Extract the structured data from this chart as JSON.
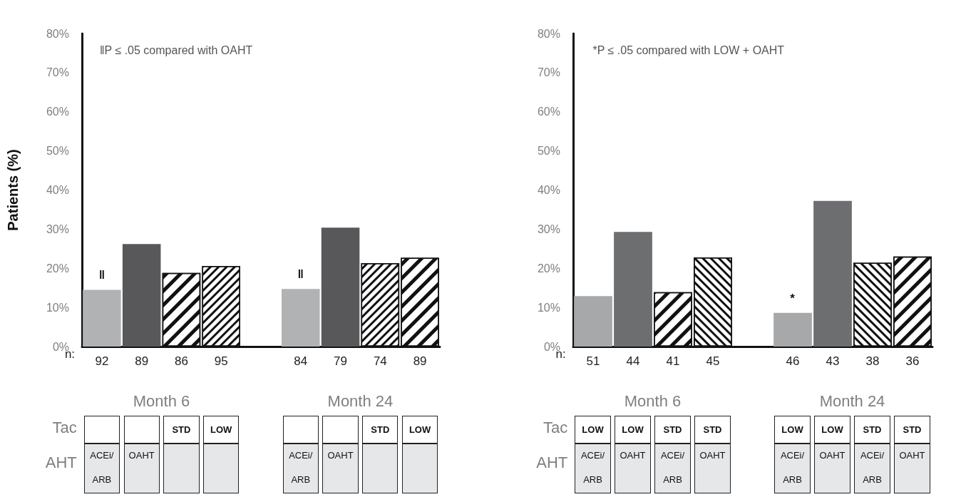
{
  "chart_data": [
    {
      "type": "bar",
      "ylabel": "Patients (%)",
      "categories": [
        "92",
        "89",
        "86",
        "95",
        null,
        "84",
        "79",
        "74",
        "89"
      ],
      "values": [
        14.5,
        26.2,
        18.8,
        20.6,
        null,
        14.7,
        30.4,
        21.3,
        22.7
      ],
      "colors": [
        "#b1b2b4",
        "#58585a",
        "#ffffff",
        "#ffffff",
        "#ffffff",
        "#b1b2b4",
        "#58585a",
        "#ffffff",
        "#ffffff"
      ],
      "ylim": [
        0,
        80
      ],
      "yticks": [
        {
          "value": 0,
          "label": "0%"
        },
        {
          "value": 10,
          "label": "10%"
        },
        {
          "value": 20,
          "label": "20%"
        },
        {
          "value": 30,
          "label": "30%"
        },
        {
          "value": 40,
          "label": "40%"
        },
        {
          "value": 50,
          "label": "50%"
        },
        {
          "value": 60,
          "label": "60%"
        },
        {
          "value": 70,
          "label": "70%"
        },
        {
          "value": 80,
          "label": "80%"
        }
      ],
      "annotations": [
        "ǁP ≤ .05 compared with OAHT",
        "n:",
        "Month 6",
        "Month 24",
        "Tac",
        "AHT",
        null,
        null,
        "STD",
        "LOW",
        null,
        null,
        "STD",
        "LOW",
        "ACEi/ARB",
        "OAHT",
        null,
        null,
        "ACEi/ARB",
        "OAHT",
        null,
        null,
        {
          "text": "ǁ",
          "x": "92",
          "y": 14.5
        },
        {
          "text": "ǁ",
          "x": "84",
          "y": 14.7
        }
      ]
    },
    {
      "type": "bar",
      "categories": [
        "51",
        "44",
        "41",
        "45",
        null,
        "46",
        "43",
        "38",
        "36"
      ],
      "values": [
        12.9,
        29.3,
        13.9,
        22.8,
        null,
        8.6,
        37.2,
        21.4,
        23.0
      ],
      "colors": [
        "#a7a8aa",
        "#6d6e70",
        "#ffffff",
        "#ffffff",
        "#ffffff",
        "#a7a8aa",
        "#6d6e70",
        "#ffffff",
        "#ffffff"
      ],
      "ylim": [
        0,
        80
      ],
      "yticks": [
        {
          "value": 0,
          "label": "0%"
        },
        {
          "value": 10,
          "label": "10%"
        },
        {
          "value": 20,
          "label": "20%"
        },
        {
          "value": 30,
          "label": "30%"
        },
        {
          "value": 40,
          "label": "40%"
        },
        {
          "value": 50,
          "label": "50%"
        },
        {
          "value": 60,
          "label": "60%"
        },
        {
          "value": 70,
          "label": "70%"
        },
        {
          "value": 80,
          "label": "80%"
        }
      ],
      "annotations": [
        "*P ≤ .05 compared with LOW + OAHT",
        "n:",
        "Month 6",
        "Month 24",
        "Tac",
        "AHT",
        "LOW",
        "LOW",
        "STD",
        "STD",
        "LOW",
        "LOW",
        "STD",
        "STD",
        "ACEi/ARB",
        "OAHT",
        "ACEi/ARB",
        "OAHT",
        "ACEi/ARB",
        "OAHT",
        "ACEi/ARB",
        "OAHT",
        {
          "text": "*",
          "x": "46",
          "y": 8.6
        }
      ]
    }
  ]
}
